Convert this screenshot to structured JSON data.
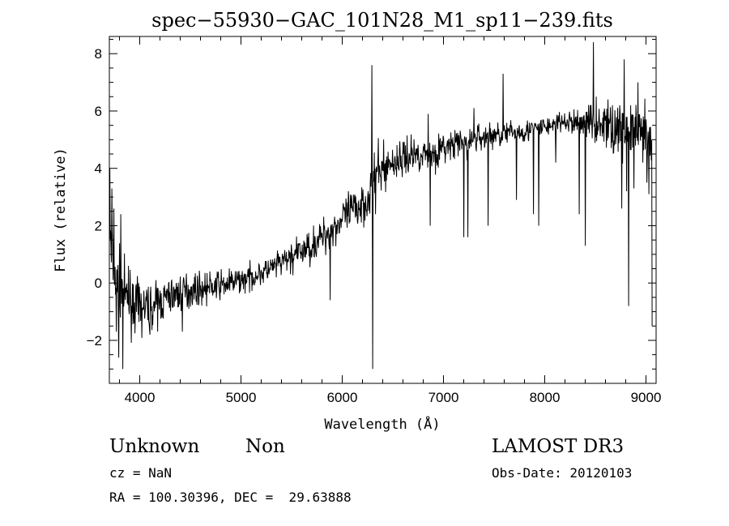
{
  "chart_data": {
    "type": "line",
    "title": "spec−55930−GAC_101N28_M1_sp11−239.fits",
    "xlabel": "Wavelength (Å)",
    "ylabel": "Flux (relative)",
    "xlim": [
      3700,
      9100
    ],
    "ylim": [
      -3.5,
      8.6
    ],
    "xticks": [
      4000,
      5000,
      6000,
      7000,
      8000,
      9000
    ],
    "xtick_labels": [
      "4000",
      "5000",
      "6000",
      "7000",
      "8000",
      "9000"
    ],
    "yticks": [
      -2,
      0,
      2,
      4,
      6,
      8
    ],
    "ytick_labels": [
      "−2",
      "0",
      "2",
      "4",
      "6",
      "8"
    ],
    "grid": false,
    "legend": "none",
    "line_color": "#000000",
    "noise_seed": 7,
    "continuum": [
      [
        3700,
        1.2
      ],
      [
        3760,
        0.2
      ],
      [
        3850,
        -0.5
      ],
      [
        4000,
        -0.9
      ],
      [
        4150,
        -0.8
      ],
      [
        4300,
        -0.45
      ],
      [
        4500,
        -0.25
      ],
      [
        4700,
        -0.15
      ],
      [
        4900,
        0.0
      ],
      [
        5100,
        0.2
      ],
      [
        5300,
        0.5
      ],
      [
        5500,
        0.9
      ],
      [
        5700,
        1.3
      ],
      [
        5900,
        1.9
      ],
      [
        6100,
        2.5
      ],
      [
        6250,
        2.95
      ],
      [
        6350,
        3.9
      ],
      [
        6500,
        4.2
      ],
      [
        6700,
        4.5
      ],
      [
        6900,
        4.5
      ],
      [
        7000,
        4.7
      ],
      [
        7200,
        4.9
      ],
      [
        7400,
        5.1
      ],
      [
        7600,
        5.2
      ],
      [
        7800,
        5.3
      ],
      [
        8000,
        5.45
      ],
      [
        8200,
        5.6
      ],
      [
        8400,
        5.6
      ],
      [
        8600,
        5.5
      ],
      [
        8800,
        5.3
      ],
      [
        9000,
        5.0
      ],
      [
        9060,
        4.5
      ]
    ],
    "noise": [
      [
        3700,
        1.2
      ],
      [
        3800,
        0.8
      ],
      [
        4000,
        0.6
      ],
      [
        4500,
        0.4
      ],
      [
        5200,
        0.3
      ],
      [
        5800,
        0.45
      ],
      [
        6300,
        0.6
      ],
      [
        6800,
        0.4
      ],
      [
        7200,
        0.4
      ],
      [
        7600,
        0.3
      ],
      [
        8200,
        0.25
      ],
      [
        8500,
        0.5
      ],
      [
        8700,
        0.7
      ],
      [
        9060,
        0.8
      ]
    ],
    "features": [
      [
        3705,
        4.0
      ],
      [
        3725,
        3.3
      ],
      [
        3745,
        2.6
      ],
      [
        3770,
        -1.7
      ],
      [
        3795,
        -2.6
      ],
      [
        3812,
        2.4
      ],
      [
        3835,
        -3.0
      ],
      [
        3890,
        0.6
      ],
      [
        4100,
        -1.8
      ],
      [
        4420,
        -1.7
      ],
      [
        5880,
        -0.6
      ],
      [
        6295,
        7.6
      ],
      [
        6300,
        -3.0
      ],
      [
        6330,
        2.4
      ],
      [
        6850,
        5.9
      ],
      [
        6870,
        2.0
      ],
      [
        7200,
        1.6
      ],
      [
        7240,
        1.6
      ],
      [
        7300,
        6.1
      ],
      [
        7440,
        2.0
      ],
      [
        7590,
        7.3
      ],
      [
        7720,
        2.9
      ],
      [
        7890,
        2.4
      ],
      [
        7940,
        2.0
      ],
      [
        8110,
        4.2
      ],
      [
        8340,
        2.4
      ],
      [
        8400,
        1.3
      ],
      [
        8450,
        6.2
      ],
      [
        8480,
        8.4
      ],
      [
        8510,
        6.5
      ],
      [
        8555,
        5.6
      ],
      [
        8625,
        6.4
      ],
      [
        8690,
        4.8
      ],
      [
        8760,
        2.6
      ],
      [
        8785,
        7.8
      ],
      [
        8810,
        3.2
      ],
      [
        8830,
        -0.8
      ],
      [
        8850,
        6.2
      ],
      [
        8880,
        3.3
      ],
      [
        8920,
        7.0
      ],
      [
        8950,
        5.2
      ],
      [
        8980,
        5.7
      ],
      [
        9010,
        3.5
      ],
      [
        9030,
        3.1
      ],
      [
        9050,
        4.8
      ],
      [
        9063,
        -1.5
      ]
    ]
  },
  "info": {
    "object": "Unknown",
    "class": "Non",
    "survey": "LAMOST DR3",
    "cz": "cz = NaN",
    "obs_date": "Obs-Date: 20120103",
    "coords": "RA = 100.30396, DEC =  29.63888"
  }
}
